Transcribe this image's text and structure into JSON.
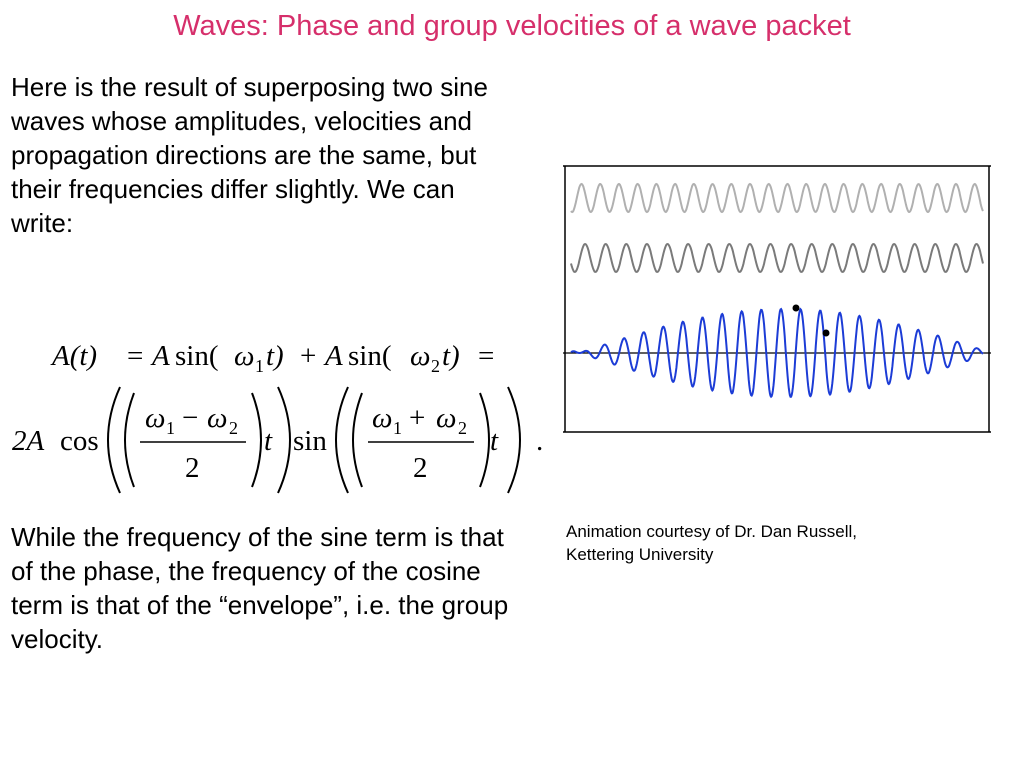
{
  "slide": {
    "title": "Waves: Phase and group velocities of a wave packet",
    "title_color": "#d62f6b",
    "intro_text": "Here is the result of superposing two sine waves whose amplitudes, velocities and propagation directions are the same, but their frequencies differ slightly. We can write:",
    "closing_text": "While the frequency of the sine term is that of the phase, the frequency of the cosine term is that of the “envelope”, i.e. the group velocity.",
    "credit_line1": "Animation courtesy of Dr. Dan Russell,",
    "credit_line2": "Kettering University"
  },
  "equation": {
    "line1": {
      "lhs": "A(t)",
      "eq": "=",
      "amp": "A",
      "sin": "sin(",
      "omega": "ω",
      "sub1": "1",
      "sub2": "2",
      "t_close": "t)",
      "plus": "+"
    },
    "line2": {
      "prefix": "2A",
      "cos": "cos",
      "sin": "sin",
      "minus": "−",
      "plus": "+",
      "denominator": "2",
      "t": "t",
      "period": "."
    }
  },
  "wave_panel": {
    "light_wave_color": "#b0b0b0",
    "mid_wave_color": "#7a7a7a",
    "packet_color": "#1c3cd6",
    "axis_color": "#000000",
    "frame_color": "#000000",
    "light_wave_cycles": 22,
    "mid_wave_cycles": 20,
    "packet_carrier_cycles": 21,
    "packet_envelope_cycles": 1
  }
}
